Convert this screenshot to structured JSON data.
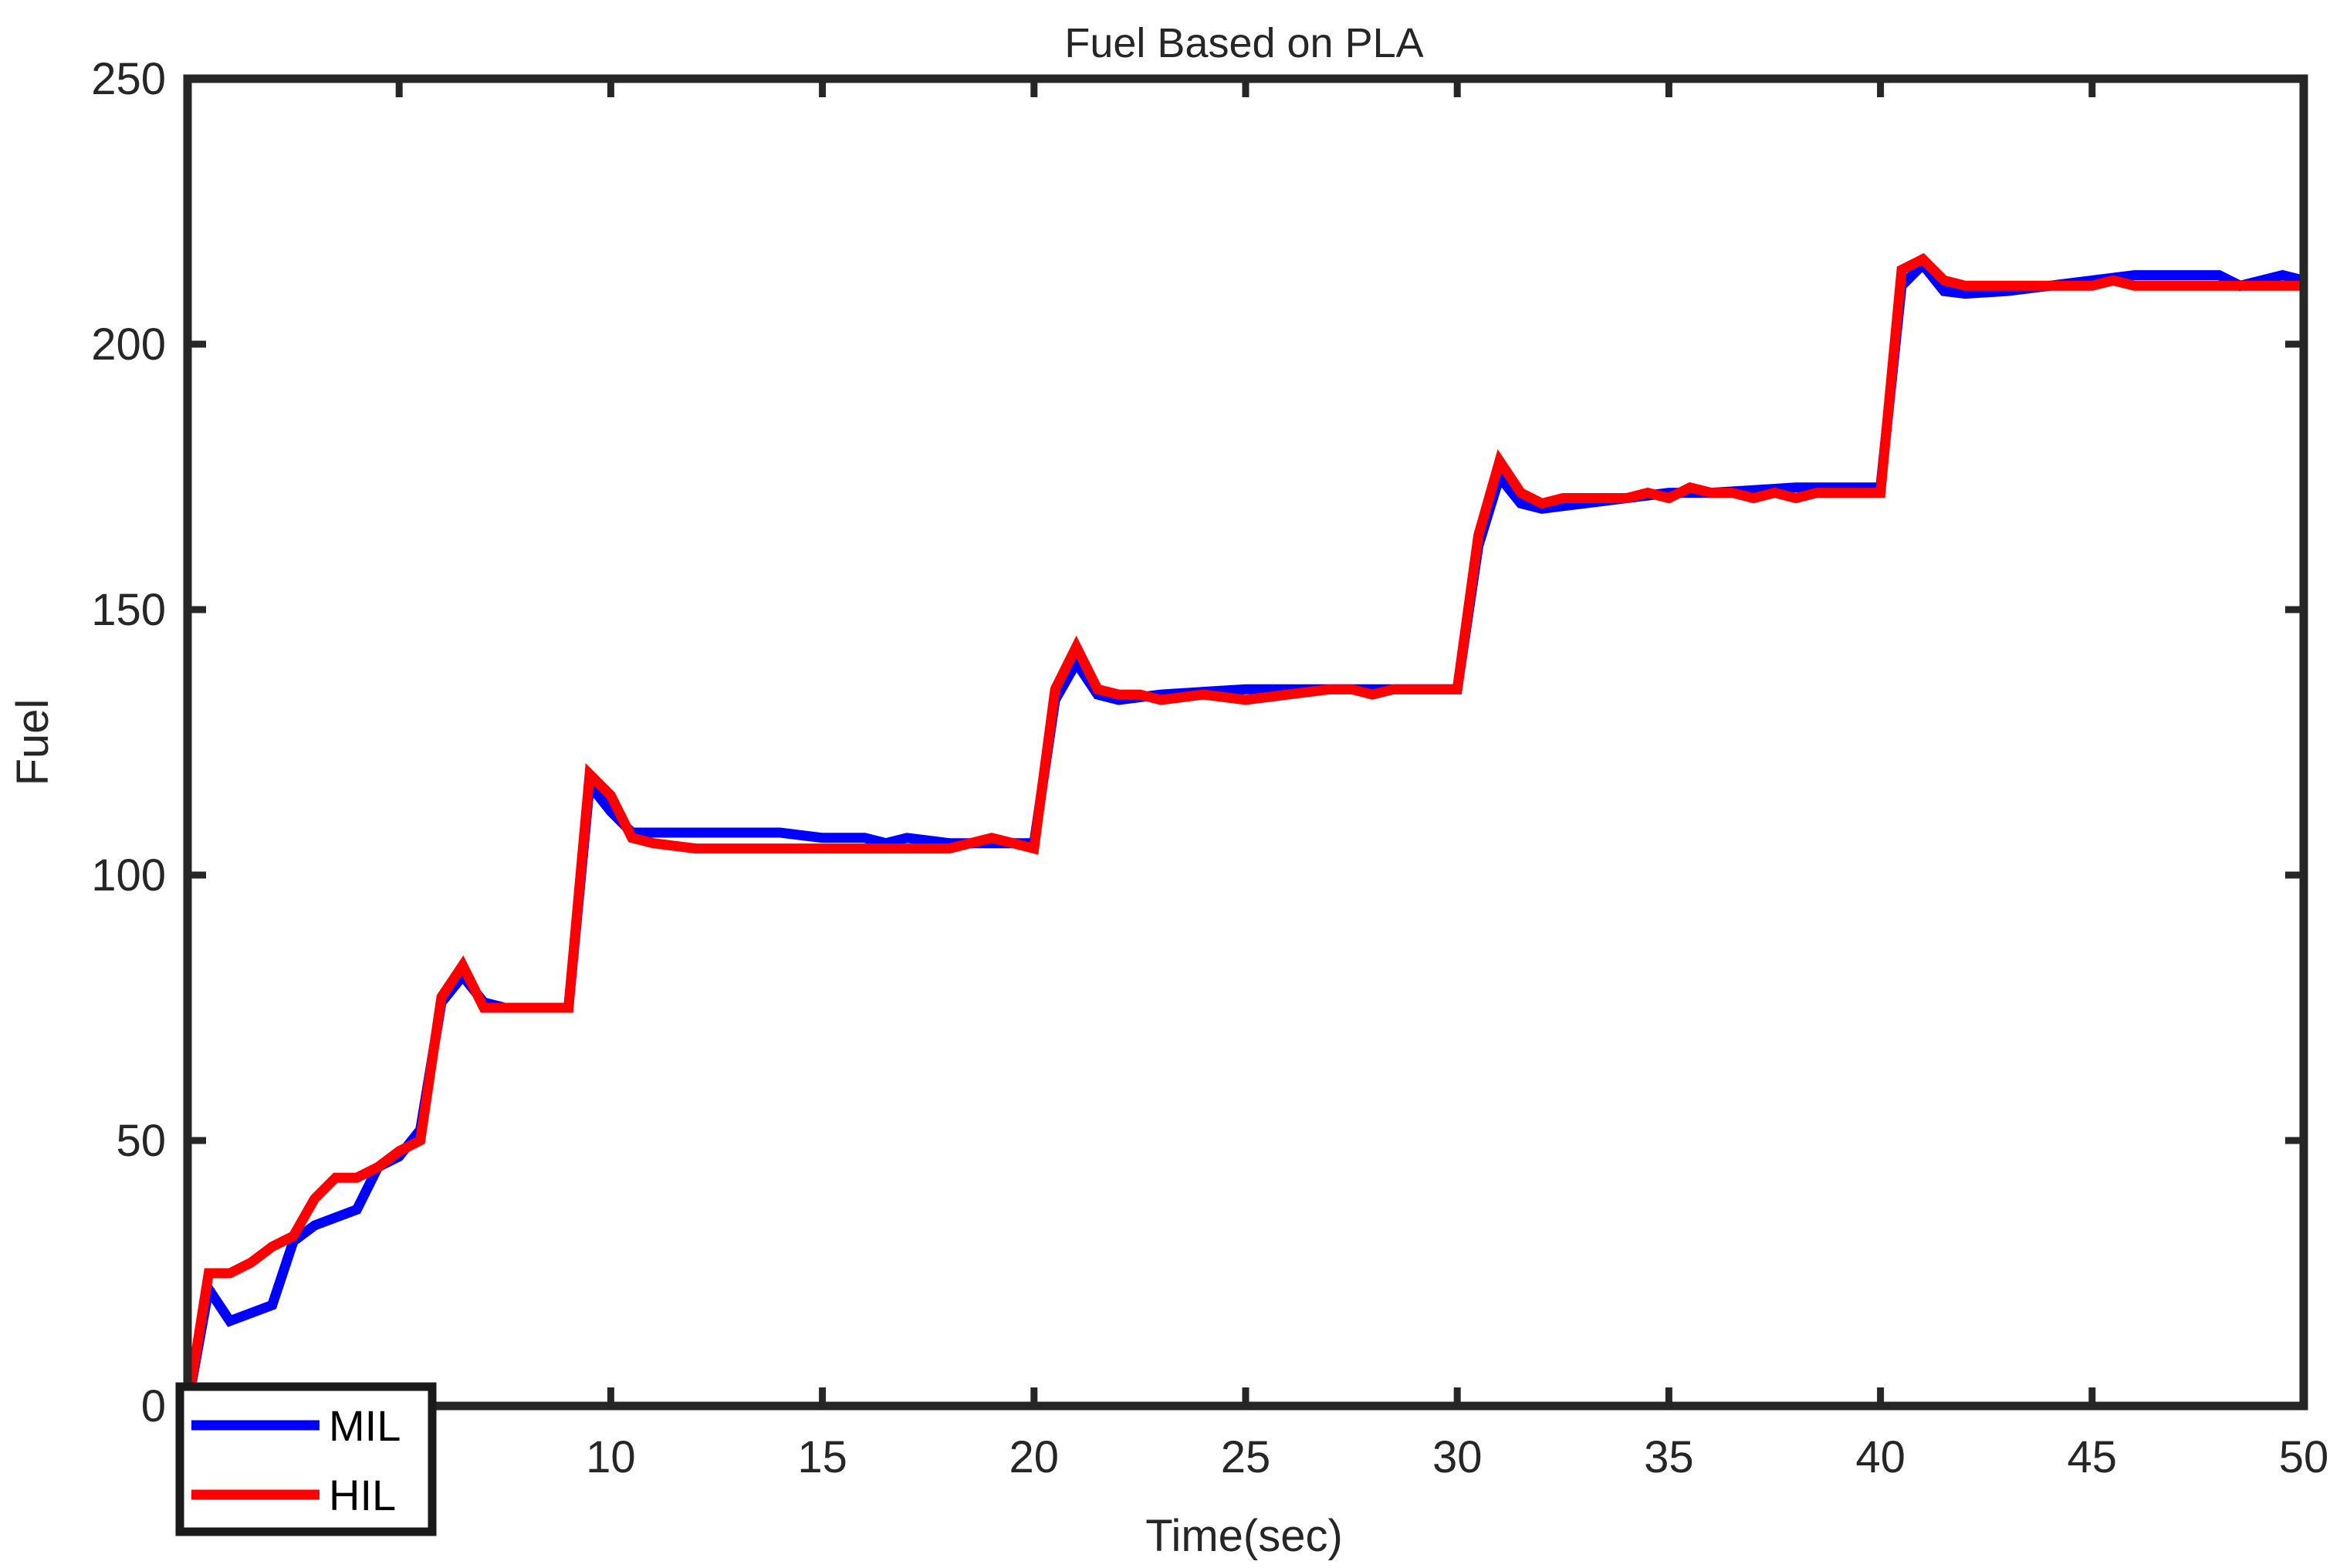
{
  "chart_data": {
    "type": "line",
    "title": "Fuel Based on PLA",
    "xlabel": "Time(sec)",
    "ylabel": "Fuel",
    "xlim": [
      0,
      50
    ],
    "ylim": [
      0,
      250
    ],
    "xticks": [
      0,
      5,
      10,
      15,
      20,
      25,
      30,
      35,
      40,
      45,
      50
    ],
    "xtick_labels": [
      "",
      "",
      "10",
      "15",
      "20",
      "25",
      "30",
      "35",
      "40",
      "45",
      "50"
    ],
    "yticks": [
      0,
      50,
      100,
      150,
      200,
      250
    ],
    "ytick_labels": [
      "0",
      "50",
      "100",
      "150",
      "200",
      "250"
    ],
    "grid": false,
    "legend_position": "bottom-left",
    "series": [
      {
        "name": "MIL",
        "color": "#0000ff",
        "x": [
          0,
          0.5,
          1,
          2,
          2.5,
          3,
          4,
          4.5,
          5,
          5.5,
          6,
          6.5,
          7,
          7.5,
          8,
          9,
          9.5,
          10,
          10.5,
          11,
          12,
          14,
          15,
          16,
          16.5,
          17,
          18,
          19,
          20,
          20.5,
          21,
          21.5,
          22,
          23,
          24,
          25,
          26,
          27,
          28,
          29,
          30,
          30.5,
          31,
          31.5,
          32,
          33,
          34,
          35,
          36,
          37,
          38,
          39,
          40,
          40.5,
          41,
          41.5,
          42,
          43,
          44,
          45,
          46,
          47,
          48,
          48.5,
          49,
          49.5,
          50
        ],
        "y": [
          0,
          22,
          16,
          19,
          31,
          34,
          37,
          45,
          47,
          52,
          76,
          81,
          76,
          75,
          75,
          75,
          117,
          112,
          108,
          108,
          108,
          108,
          107,
          107,
          106,
          107,
          106,
          106,
          106,
          133,
          140,
          134,
          133,
          134,
          134.5,
          135,
          135,
          135,
          135,
          135,
          135,
          162,
          175,
          170,
          169,
          170,
          171,
          172,
          172,
          172.5,
          173,
          173,
          173,
          211,
          215,
          210,
          209.5,
          210,
          211,
          212,
          213,
          213,
          213,
          211,
          212,
          213,
          212
        ]
      },
      {
        "name": "HIL",
        "color": "#ff0000",
        "x": [
          0,
          0.5,
          1,
          1.5,
          2,
          2.5,
          3,
          3.5,
          4,
          4.5,
          5,
          5.5,
          6,
          6.5,
          7,
          7.5,
          8,
          9,
          9.5,
          10,
          10.5,
          11,
          12,
          14,
          16,
          18,
          19,
          19.5,
          20,
          20.5,
          21,
          21.5,
          22,
          22.5,
          23,
          24,
          25,
          26,
          27,
          27.5,
          28,
          28.5,
          29,
          30,
          30.5,
          31,
          31.5,
          32,
          32.5,
          33,
          34,
          34.5,
          35,
          35.5,
          36,
          36.5,
          37,
          37.5,
          38,
          38.5,
          39,
          40,
          40.5,
          41,
          41.5,
          42,
          43,
          44,
          44.5,
          45,
          45.5,
          46,
          47,
          48,
          49,
          50
        ],
        "y": [
          0,
          25,
          25,
          27,
          30,
          32,
          39,
          43,
          43,
          45,
          48,
          50,
          77,
          83,
          75,
          75,
          75,
          75,
          119,
          115,
          107,
          106,
          105,
          105,
          105,
          105,
          107,
          106,
          105,
          135,
          143,
          135,
          134,
          134,
          133,
          134,
          133,
          134,
          135,
          135,
          134,
          135,
          135,
          135,
          164,
          178,
          172,
          170,
          171,
          171,
          171,
          172,
          171,
          173,
          172,
          172,
          171,
          172,
          171,
          172,
          172,
          172,
          214,
          216,
          212,
          211,
          211,
          211,
          211,
          211,
          212,
          211,
          211,
          211,
          211,
          211
        ]
      }
    ]
  }
}
